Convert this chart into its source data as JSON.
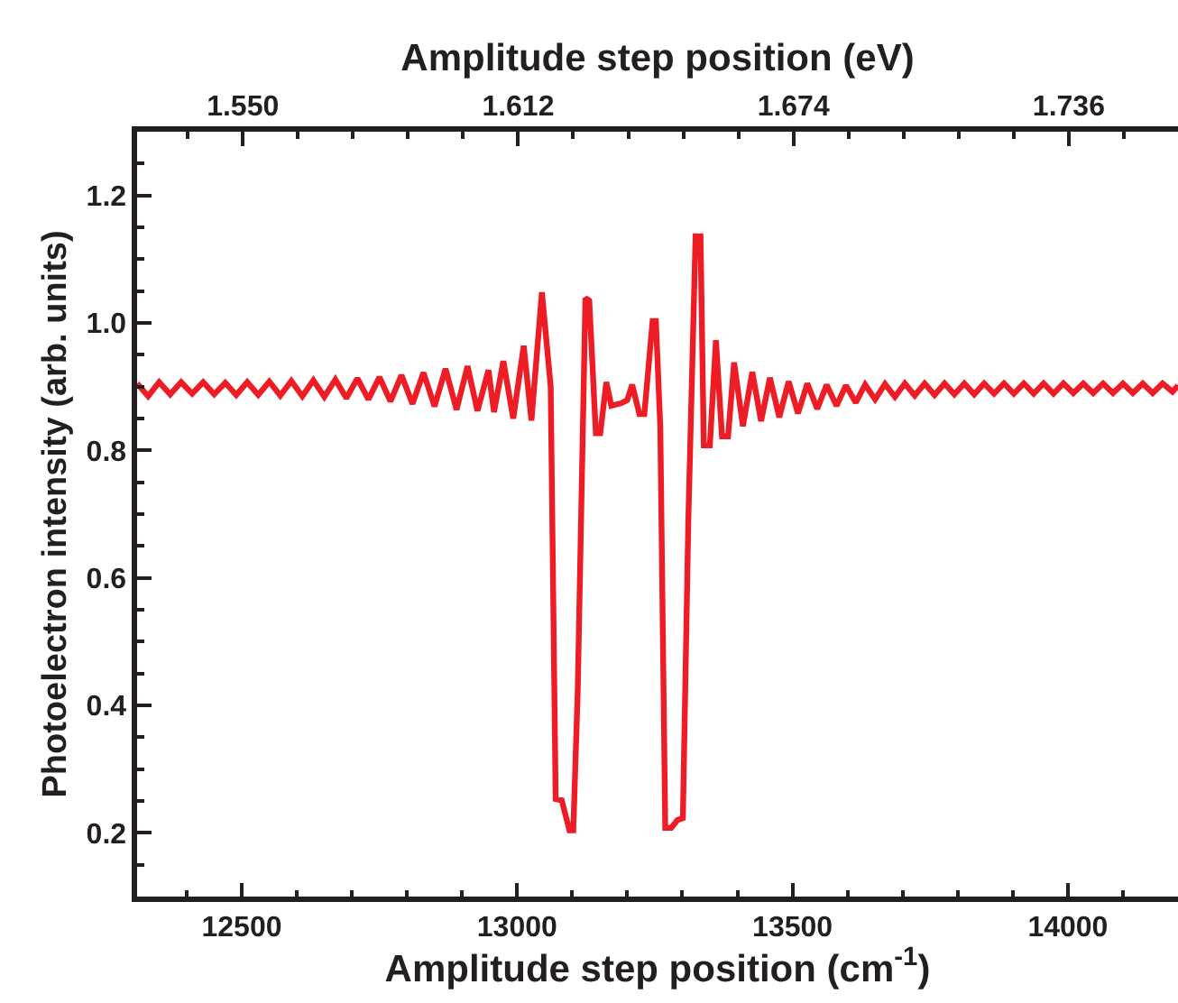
{
  "chart_data": {
    "type": "line",
    "xlabel": "Amplitude step position (cm$^{-1}$)",
    "x2label": "Amplitude step position (eV)",
    "ylabel": "Photoelectron intensity (arb. units)",
    "xlim": [
      12310,
      14200
    ],
    "xticks": [
      12500,
      13000,
      13500,
      14000
    ],
    "x2lim": [
      1.5262,
      1.7606
    ],
    "x2ticks": [
      {
        "value": 1.55,
        "label": "1.550"
      },
      1.612,
      1.674,
      1.736
    ],
    "ylim": [
      0.1,
      1.3
    ],
    "yticks": [
      0.2,
      0.4,
      0.6,
      0.8,
      {
        "value": 1.0,
        "label": "1.0"
      },
      1.2
    ],
    "marker": "none",
    "line_style": "solid",
    "series": [
      {
        "color": "#ee1c25",
        "x": [
          12310,
          12330,
          12350,
          12370,
          12390,
          12410,
          12430,
          12450,
          12470,
          12490,
          12510,
          12530,
          12550,
          12570,
          12590,
          12610,
          12630,
          12650,
          12670,
          12690,
          12710,
          12730,
          12750,
          12770,
          12790,
          12810,
          12830,
          12850,
          12870,
          12890,
          12910,
          12928,
          12948,
          12958,
          12975,
          12993,
          13012,
          13026,
          13045,
          13061,
          13070,
          13081,
          13095,
          13102,
          13110,
          13124,
          13131,
          13143,
          13151,
          13162,
          13171,
          13189,
          13200,
          13209,
          13222,
          13231,
          13246,
          13252,
          13260,
          13269,
          13280,
          13291,
          13301,
          13311,
          13324,
          13333,
          13339,
          13350,
          13361,
          13372,
          13383,
          13394,
          13410,
          13427,
          13443,
          13459,
          13476,
          13493,
          13510,
          13527,
          13545,
          13562,
          13580,
          13597,
          13615,
          13632,
          13650,
          13668,
          13686,
          13704,
          13722,
          13740,
          13758,
          13776,
          13794,
          13812,
          13830,
          13848,
          13866,
          13884,
          13902,
          13920,
          13938,
          13956,
          13974,
          13992,
          14010,
          14028,
          14046,
          14064,
          14082,
          14100,
          14118,
          14136,
          14154,
          14172,
          14190,
          14200
        ],
        "values": [
          0.905,
          0.885,
          0.907,
          0.888,
          0.907,
          0.889,
          0.907,
          0.888,
          0.906,
          0.887,
          0.907,
          0.887,
          0.908,
          0.886,
          0.909,
          0.885,
          0.91,
          0.884,
          0.911,
          0.882,
          0.913,
          0.88,
          0.915,
          0.877,
          0.918,
          0.873,
          0.922,
          0.869,
          0.928,
          0.864,
          0.932,
          0.862,
          0.926,
          0.86,
          0.94,
          0.85,
          0.964,
          0.847,
          1.048,
          0.9,
          0.253,
          0.251,
          0.204,
          0.204,
          0.42,
          1.039,
          1.035,
          0.827,
          0.827,
          0.907,
          0.87,
          0.874,
          0.879,
          0.903,
          0.857,
          0.857,
          1.003,
          1.003,
          0.836,
          0.208,
          0.208,
          0.22,
          0.223,
          0.695,
          1.136,
          1.136,
          0.808,
          0.808,
          0.973,
          0.822,
          0.822,
          0.938,
          0.838,
          0.923,
          0.846,
          0.914,
          0.852,
          0.908,
          0.858,
          0.905,
          0.865,
          0.903,
          0.87,
          0.902,
          0.875,
          0.903,
          0.88,
          0.904,
          0.884,
          0.905,
          0.886,
          0.905,
          0.887,
          0.905,
          0.888,
          0.905,
          0.888,
          0.905,
          0.889,
          0.905,
          0.889,
          0.905,
          0.889,
          0.905,
          0.889,
          0.905,
          0.89,
          0.905,
          0.89,
          0.905,
          0.89,
          0.905,
          0.89,
          0.905,
          0.89,
          0.905,
          0.892,
          0.902
        ]
      }
    ]
  }
}
